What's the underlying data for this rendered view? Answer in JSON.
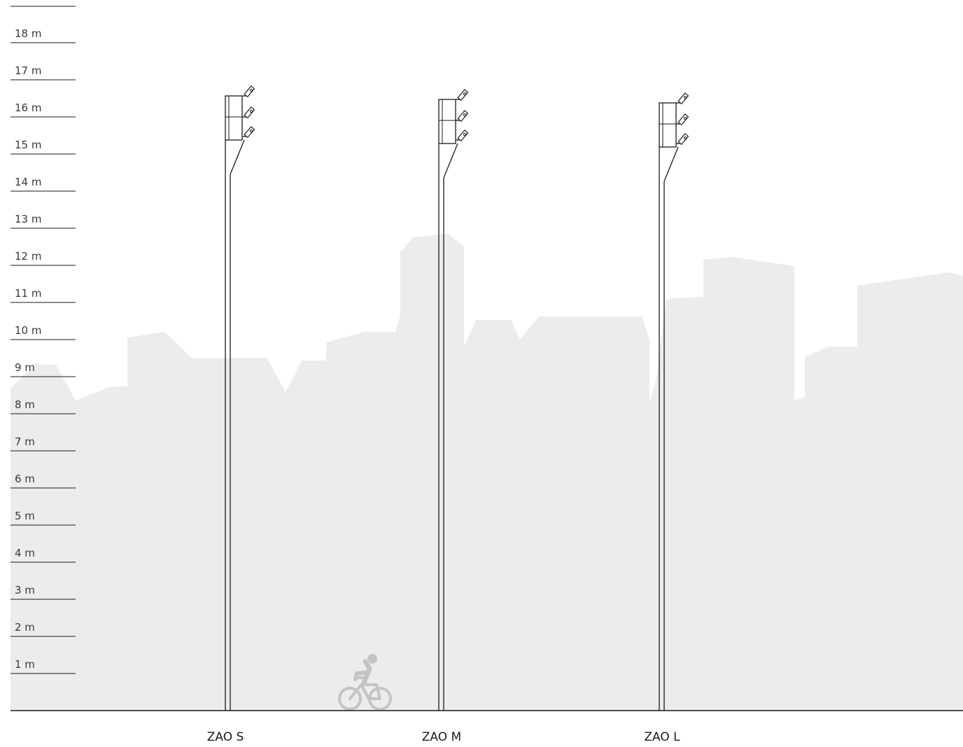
{
  "diagram": {
    "scale": {
      "unit": "m",
      "labels": [
        "1 m",
        "2 m",
        "3 m",
        "4 m",
        "5 m",
        "6 m",
        "7 m",
        "8 m",
        "9 m",
        "10 m",
        "11 m",
        "12 m",
        "13 m",
        "14 m",
        "15 m",
        "16 m",
        "17 m",
        "18 m"
      ]
    },
    "poles": [
      {
        "label": "ZAO S"
      },
      {
        "label": "ZAO M"
      },
      {
        "label": "ZAO L"
      }
    ],
    "colors": {
      "skyline": "#ececec",
      "lines": "#1a1a1a",
      "cyclist": "#c4c4c4"
    },
    "icons": [
      "bicycle-rider-icon",
      "floodlight-icon"
    ]
  }
}
